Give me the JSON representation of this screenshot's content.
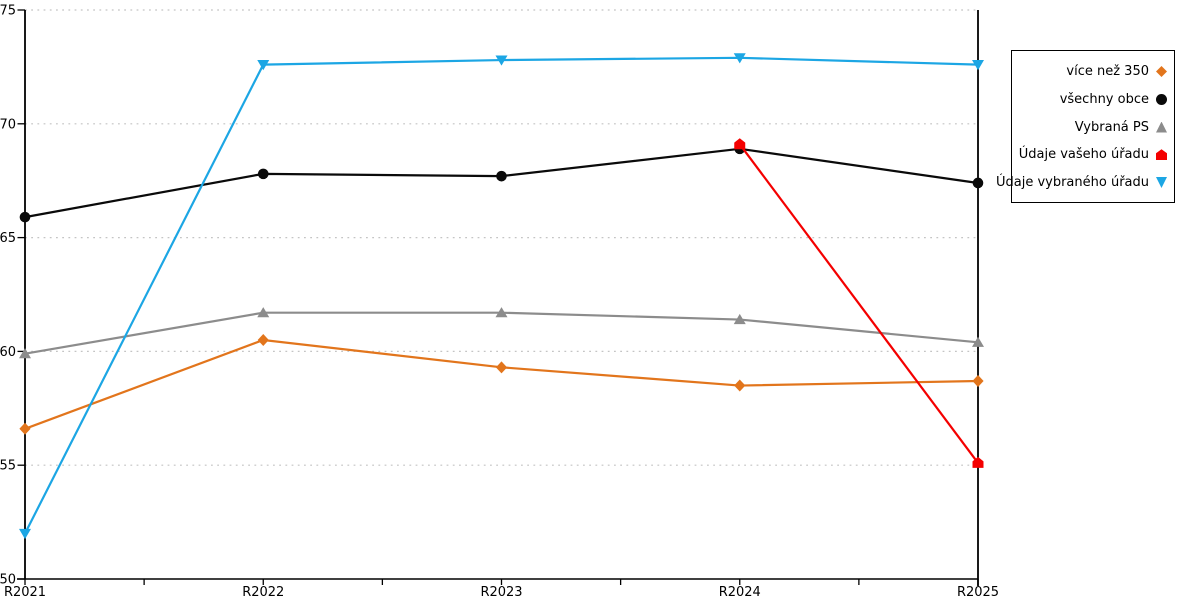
{
  "chart_data": {
    "type": "line",
    "title": "",
    "xlabel": "",
    "ylabel": "",
    "categories": [
      "R2021",
      "R2022",
      "R2023",
      "R2024",
      "R2025"
    ],
    "series": [
      {
        "name": "více než 350",
        "color": "#E2751C",
        "marker": "diamond",
        "values": [
          56.6,
          60.5,
          59.3,
          58.5,
          58.7
        ]
      },
      {
        "name": "všechny obce",
        "color": "#0A0A0A",
        "marker": "circle",
        "values": [
          65.9,
          67.8,
          67.7,
          68.9,
          67.4
        ]
      },
      {
        "name": "Vybraná PS",
        "color": "#8C8C8C",
        "marker": "triangle-up",
        "values": [
          59.9,
          61.7,
          61.7,
          61.4,
          60.4
        ]
      },
      {
        "name": "Údaje vašeho úřadu",
        "color": "#F40000",
        "marker": "pentagon",
        "values": [
          null,
          null,
          null,
          69.1,
          55.1
        ]
      },
      {
        "name": "Údaje vybraného úřadu",
        "color": "#1CA6E4",
        "marker": "triangle-down",
        "values": [
          52.0,
          72.6,
          72.8,
          72.9,
          72.6
        ]
      }
    ],
    "ylim": [
      50,
      75
    ],
    "yticks": [
      50,
      55,
      60,
      65,
      70,
      75
    ],
    "grid": "horizontal-dotted",
    "gridline_color": "#C4C4C4",
    "axis_color": "#000000",
    "legend_position": "right-top"
  }
}
